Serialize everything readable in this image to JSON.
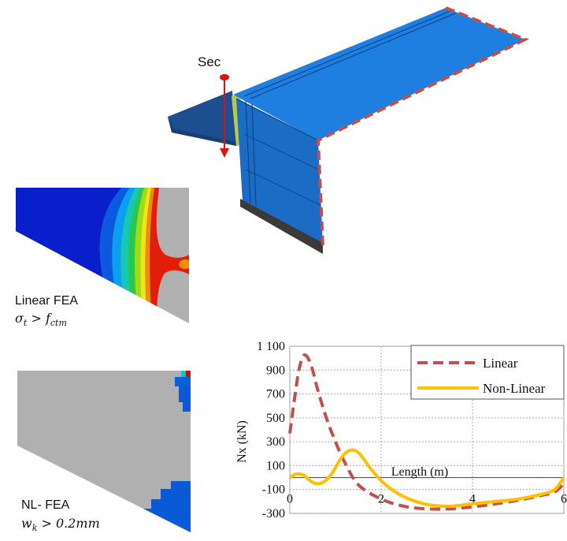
{
  "structure_view": {
    "section_label": "Sec",
    "colors": {
      "slab_top": "#1f7fe0",
      "slab_side": "#1a6cc4",
      "cantilever": "#1c4f8f",
      "boundary": "#c0504d",
      "section_marker": "#e01010"
    }
  },
  "contour_linear": {
    "caption": "Linear FEA",
    "criterion": {
      "symbol": "σ",
      "sub": "t",
      "op": ">",
      "rhs": "f",
      "rhs_sub": "ctm"
    }
  },
  "contour_nonlinear": {
    "caption": "NL- FEA",
    "criterion": {
      "symbol": "w",
      "sub": "k",
      "op": ">",
      "rhs": "0.2mm"
    }
  },
  "chart_data": {
    "type": "line",
    "ylabel": "Nx (kN)",
    "xlabel": "Length (m)",
    "xlim": [
      0,
      6
    ],
    "ylim": [
      -300,
      1100
    ],
    "xticks": [
      0,
      2,
      4,
      6
    ],
    "yticks": [
      -300,
      -100,
      100,
      300,
      500,
      700,
      900,
      1100
    ],
    "ytick_labels": [
      "-300",
      "-100",
      "100",
      "300",
      "500",
      "700",
      "900",
      "1 100"
    ],
    "grid": true,
    "legend_position": "top-right",
    "series": [
      {
        "name": "Linear",
        "color": "#c0504d",
        "style": "dashed",
        "points": [
          [
            0,
            370
          ],
          [
            0.1,
            650
          ],
          [
            0.2,
            900
          ],
          [
            0.3,
            1020
          ],
          [
            0.4,
            1000
          ],
          [
            0.5,
            900
          ],
          [
            0.6,
            750
          ],
          [
            0.8,
            500
          ],
          [
            1.0,
            300
          ],
          [
            1.2,
            130
          ],
          [
            1.5,
            -60
          ],
          [
            2.0,
            -180
          ],
          [
            2.5,
            -240
          ],
          [
            3.0,
            -262
          ],
          [
            3.5,
            -262
          ],
          [
            4.0,
            -245
          ],
          [
            4.5,
            -220
          ],
          [
            5.0,
            -190
          ],
          [
            5.5,
            -150
          ],
          [
            5.8,
            -120
          ],
          [
            6.0,
            -50
          ]
        ]
      },
      {
        "name": "Non-Linear",
        "color": "#ffc000",
        "style": "solid",
        "points": [
          [
            0,
            0
          ],
          [
            0.15,
            30
          ],
          [
            0.3,
            20
          ],
          [
            0.5,
            -40
          ],
          [
            0.65,
            -50
          ],
          [
            0.8,
            -20
          ],
          [
            0.95,
            50
          ],
          [
            1.1,
            150
          ],
          [
            1.25,
            215
          ],
          [
            1.4,
            230
          ],
          [
            1.55,
            190
          ],
          [
            1.8,
            60
          ],
          [
            2.1,
            -60
          ],
          [
            2.5,
            -160
          ],
          [
            3.0,
            -225
          ],
          [
            3.5,
            -240
          ],
          [
            4.0,
            -220
          ],
          [
            4.5,
            -200
          ],
          [
            5.0,
            -180
          ],
          [
            5.5,
            -140
          ],
          [
            5.8,
            -100
          ],
          [
            6.0,
            0
          ]
        ]
      }
    ]
  }
}
